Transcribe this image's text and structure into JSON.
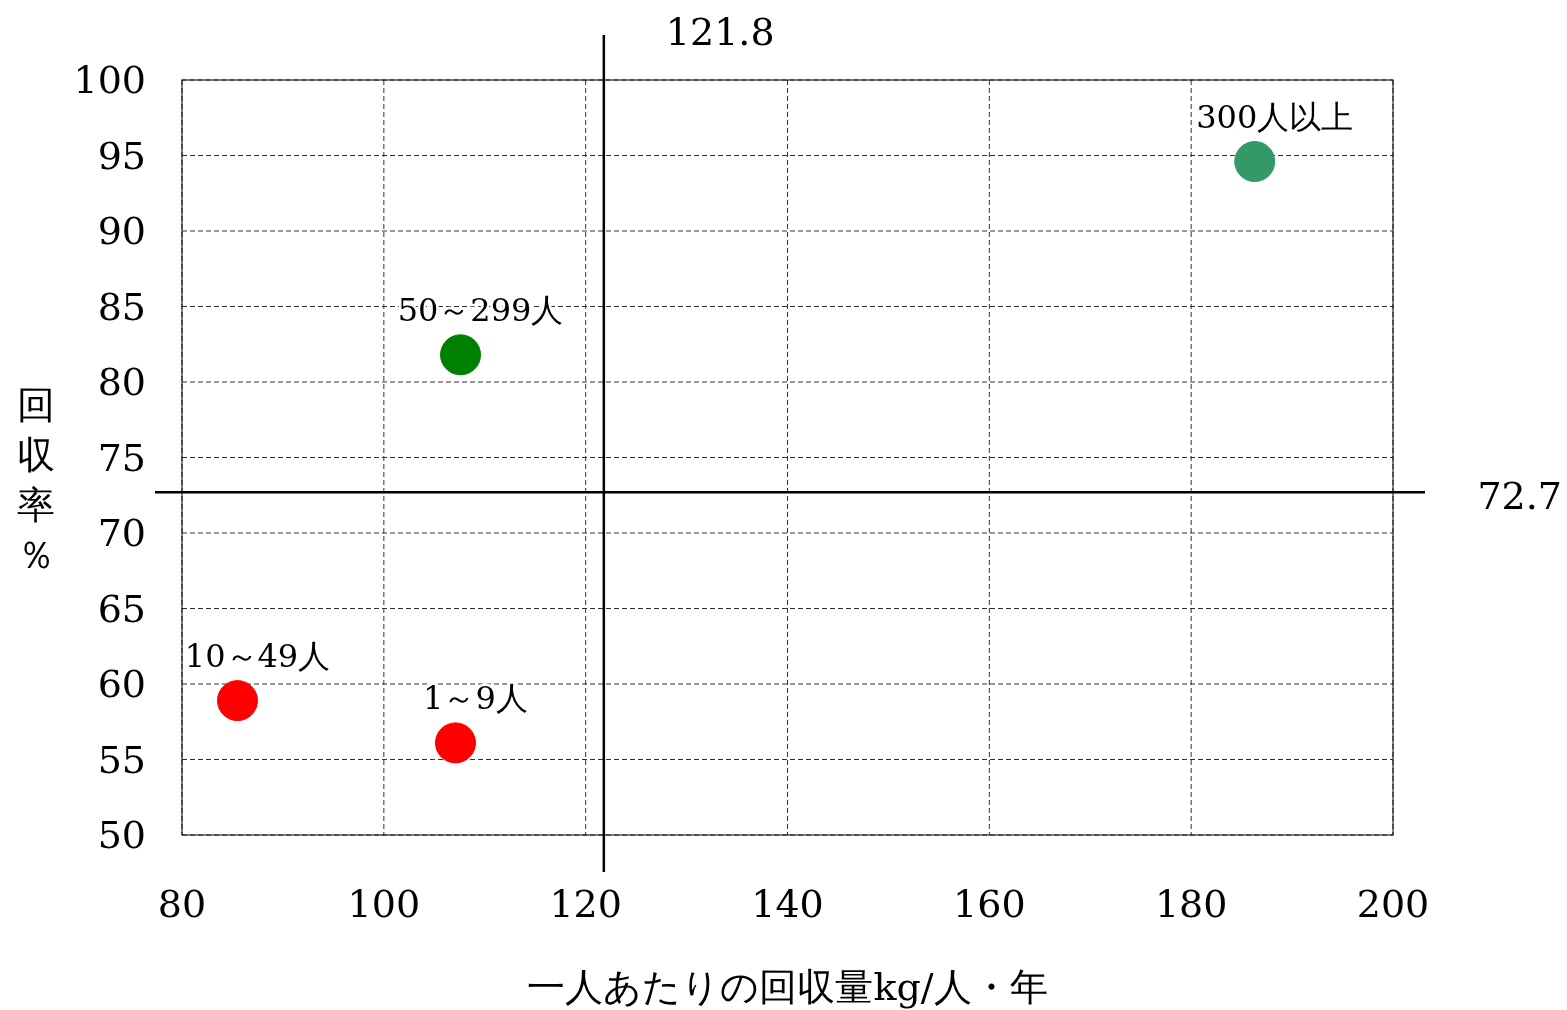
{
  "chart_data": {
    "type": "scatter",
    "xlabel": "一人あたりの回収量kg/人・年",
    "ylabel": "回収率％",
    "xlim": [
      80,
      200
    ],
    "ylim": [
      50,
      100
    ],
    "xticks": [
      80,
      100,
      120,
      140,
      160,
      180,
      200
    ],
    "yticks": [
      50,
      55,
      60,
      65,
      70,
      75,
      80,
      85,
      90,
      95,
      100
    ],
    "grid": true,
    "legend": false,
    "marker": "circle",
    "series": [
      {
        "name": "10～49人",
        "color": "#ff0000",
        "x": [
          85.5
        ],
        "values": [
          58.9
        ]
      },
      {
        "name": "1～9人",
        "color": "#ff0000",
        "x": [
          107.1
        ],
        "values": [
          56.1
        ]
      },
      {
        "name": "50～299人",
        "color": "#008000",
        "x": [
          107.6
        ],
        "values": [
          81.8
        ]
      },
      {
        "name": "300人以上",
        "color": "#339966",
        "x": [
          186.3
        ],
        "values": [
          94.6
        ]
      }
    ],
    "ref_lines": [
      {
        "axis": "x",
        "value": 121.8,
        "label": "121.8",
        "color": "#000000"
      },
      {
        "axis": "y",
        "value": 72.7,
        "label": "72.7",
        "color": "#000000"
      }
    ]
  }
}
